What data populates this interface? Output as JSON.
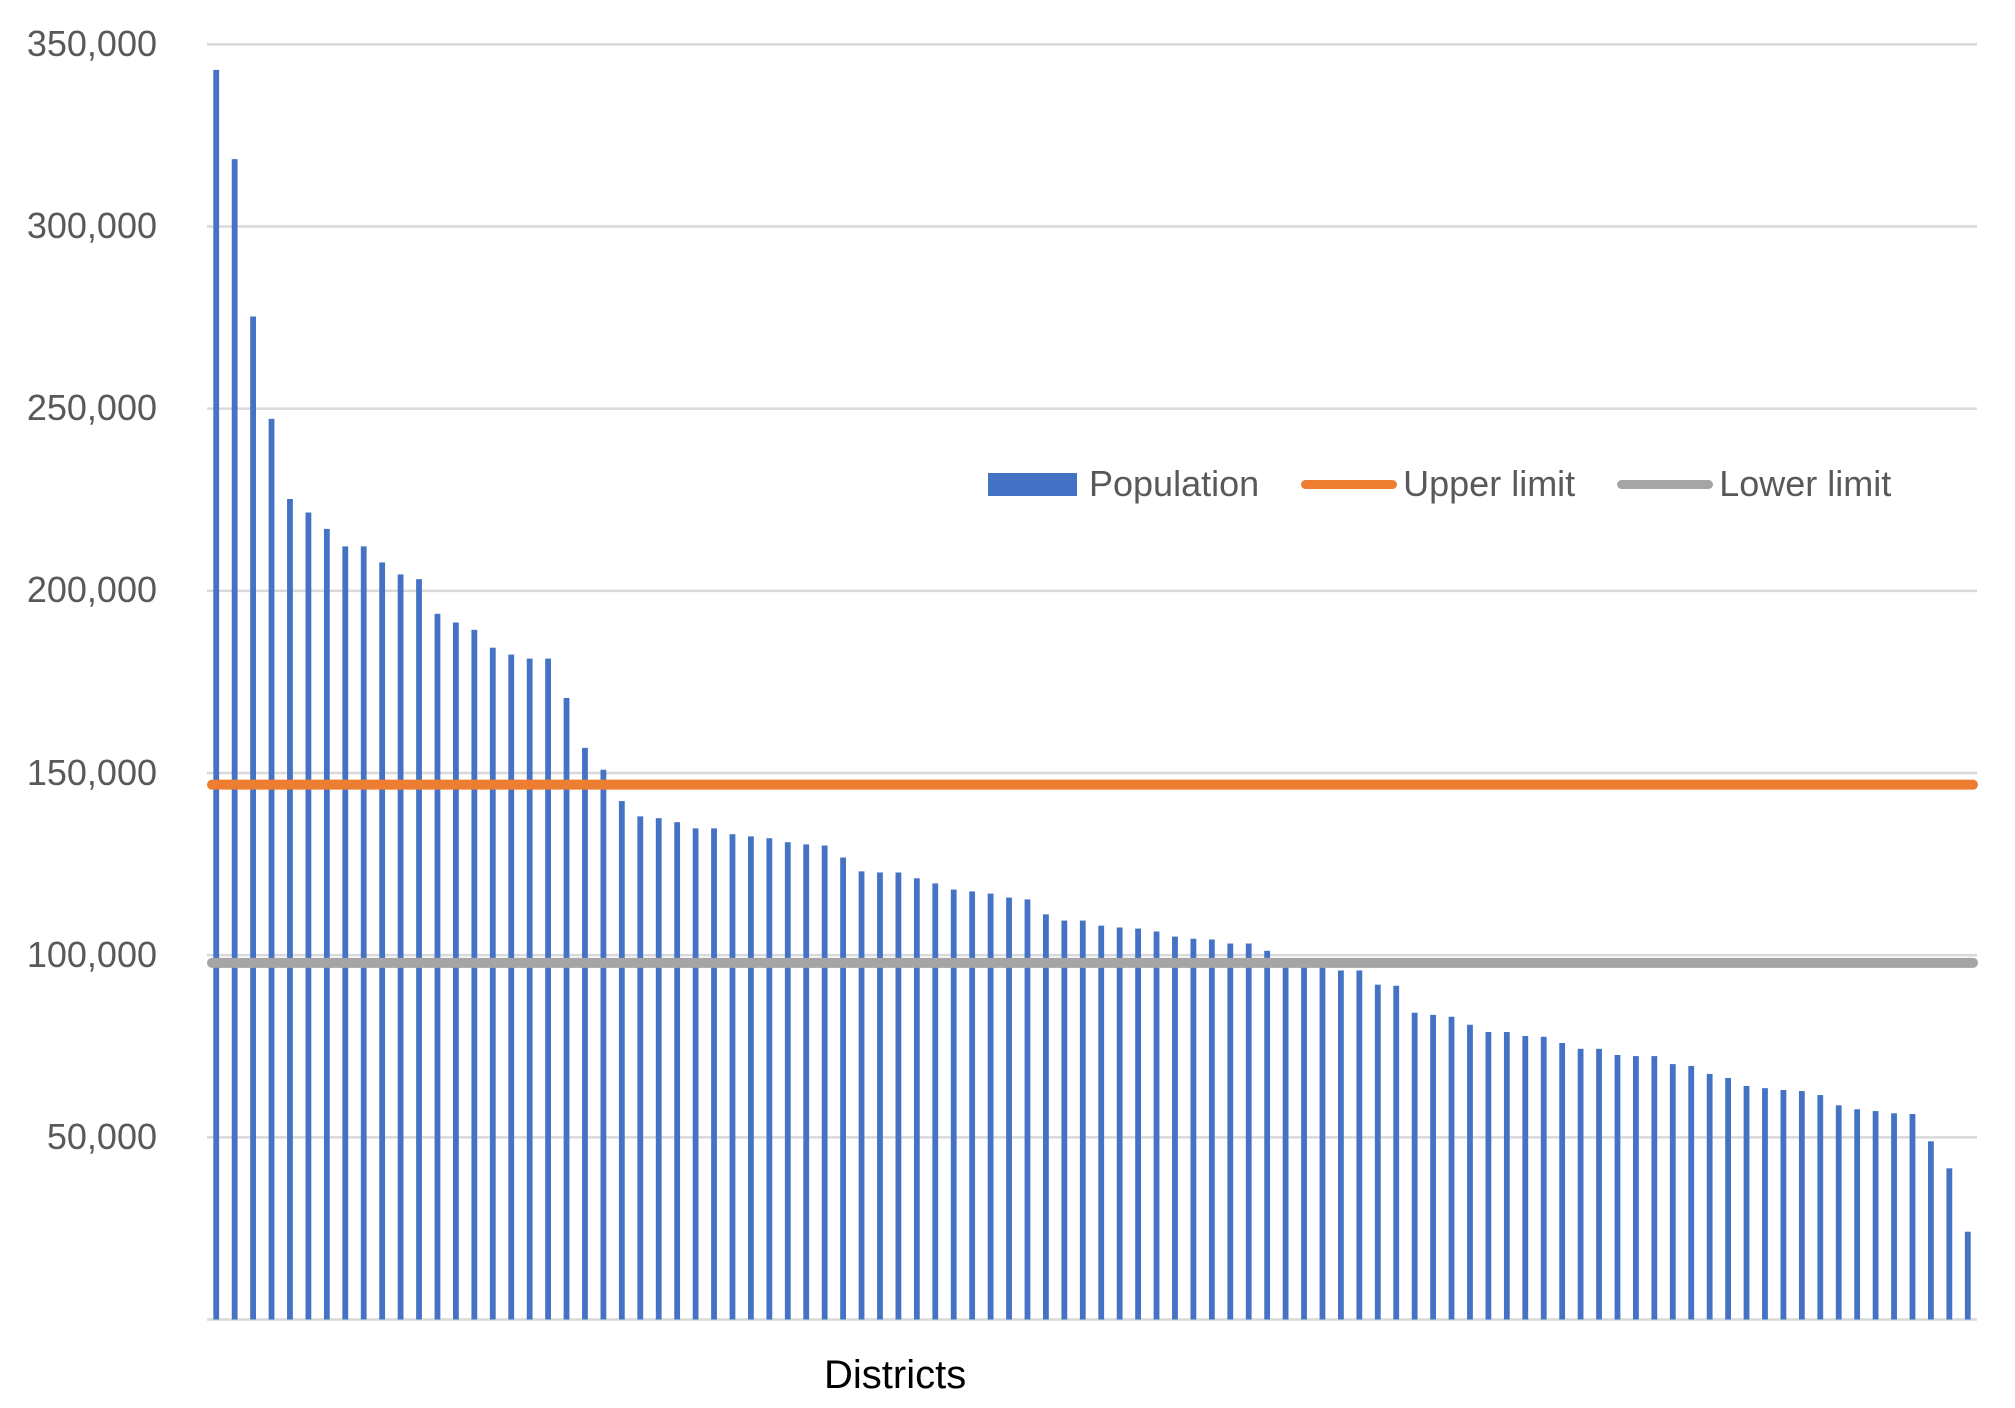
{
  "chart_data": {
    "type": "bar",
    "title": "",
    "xlabel": "Districts",
    "ylabel": "",
    "ylim": [
      0,
      350000
    ],
    "yticks": [
      50000,
      100000,
      150000,
      200000,
      250000,
      300000,
      350000
    ],
    "ytick_labels": [
      "50,000",
      "100,000",
      "150,000",
      "200,000",
      "250,000",
      "300,000",
      "350,000"
    ],
    "grid": true,
    "legend_position": "upper right (inside plot)",
    "categories_count": 96,
    "series": [
      {
        "name": "Population",
        "type": "bar",
        "color": "#4472c4",
        "values": [
          343000,
          318500,
          275300,
          247200,
          225200,
          221500,
          217000,
          212200,
          212200,
          207800,
          204500,
          203200,
          193700,
          191300,
          189300,
          184400,
          182500,
          181400,
          181400,
          170600,
          156900,
          150900,
          142300,
          138100,
          137600,
          136500,
          134800,
          134800,
          133200,
          132600,
          132100,
          131000,
          130400,
          130100,
          126800,
          123000,
          122700,
          122700,
          121100,
          119700,
          118000,
          117500,
          116900,
          115800,
          115300,
          111200,
          109500,
          109500,
          108100,
          107600,
          107300,
          106500,
          105100,
          104500,
          104300,
          103200,
          103200,
          101200,
          98500,
          98000,
          97500,
          95800,
          95800,
          91900,
          91600,
          84200,
          83600,
          83100,
          80900,
          78900,
          78900,
          77800,
          77600,
          75900,
          74300,
          74300,
          72600,
          72300,
          72300,
          70100,
          69600,
          67400,
          66300,
          64100,
          63500,
          63000,
          62700,
          61600,
          58800,
          57700,
          57200,
          56600,
          56400,
          48900,
          41500,
          24100
        ]
      },
      {
        "name": "Upper limit",
        "type": "line",
        "color": "#ed7d31",
        "value": 146800
      },
      {
        "name": "Lower limit",
        "type": "line",
        "color": "#a5a5a5",
        "value": 97900
      }
    ]
  },
  "legend": {
    "population": "Population",
    "upper_limit": "Upper limit",
    "lower_limit": "Lower limit"
  },
  "axis": {
    "x_title": "Districts",
    "y_labels": [
      "350,000",
      "300,000",
      "250,000",
      "200,000",
      "150,000",
      "100,000",
      "50,000"
    ]
  },
  "colors": {
    "bar": "#4472c4",
    "upper": "#ed7d31",
    "lower": "#a5a5a5",
    "grid": "#d9d9d9",
    "tick_text": "#595959"
  }
}
